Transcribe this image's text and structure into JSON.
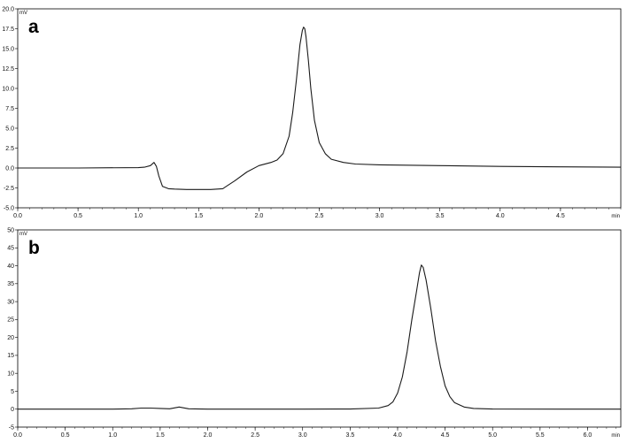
{
  "chart_data": [
    {
      "panel": "a",
      "type": "line",
      "xlabel": "min",
      "ylabel": "mV",
      "xlim": [
        0,
        5.0
      ],
      "ylim": [
        -5.0,
        20.0
      ],
      "xticks": [
        "0.0",
        "0.5",
        "1.0",
        "1.5",
        "2.0",
        "2.5",
        "3.0",
        "3.5",
        "4.0",
        "4.5"
      ],
      "yticks": [
        "-5.0",
        "-2.5",
        "0.0",
        "2.5",
        "5.0",
        "7.5",
        "10.0",
        "12.5",
        "15.0",
        "17.5",
        "20.0"
      ],
      "grid": false,
      "series": [
        {
          "x": [
            0.0,
            0.5,
            1.0,
            1.05,
            1.1,
            1.13,
            1.15,
            1.17,
            1.2,
            1.25,
            1.3,
            1.4,
            1.5,
            1.6,
            1.7,
            1.8,
            1.9,
            2.0,
            2.1,
            2.15,
            2.2,
            2.25,
            2.28,
            2.31,
            2.34,
            2.36,
            2.37,
            2.38,
            2.39,
            2.41,
            2.43,
            2.46,
            2.5,
            2.55,
            2.6,
            2.7,
            2.8,
            3.0,
            3.5,
            4.0,
            4.5,
            5.0
          ],
          "y": [
            0.0,
            0.0,
            0.05,
            0.1,
            0.3,
            0.7,
            0.2,
            -1.0,
            -2.3,
            -2.6,
            -2.65,
            -2.7,
            -2.7,
            -2.7,
            -2.6,
            -1.6,
            -0.5,
            0.3,
            0.7,
            1.0,
            1.8,
            4.0,
            7.0,
            11.0,
            15.5,
            17.3,
            17.7,
            17.5,
            16.5,
            13.5,
            10.0,
            6.0,
            3.2,
            1.8,
            1.1,
            0.7,
            0.5,
            0.4,
            0.3,
            0.2,
            0.15,
            0.1
          ]
        }
      ]
    },
    {
      "panel": "b",
      "type": "line",
      "xlabel": "min",
      "ylabel": "mV",
      "xlim": [
        0,
        6.35
      ],
      "ylim": [
        -5,
        50
      ],
      "xticks": [
        "0.0",
        "0.5",
        "1.0",
        "1.5",
        "2.0",
        "2.5",
        "3.0",
        "3.5",
        "4.0",
        "4.5",
        "5.0",
        "5.5",
        "6.0"
      ],
      "yticks": [
        "-5",
        "0",
        "5",
        "10",
        "15",
        "20",
        "25",
        "30",
        "35",
        "40",
        "45",
        "50"
      ],
      "grid": false,
      "series": [
        {
          "x": [
            0.0,
            0.5,
            1.0,
            1.2,
            1.3,
            1.4,
            1.5,
            1.6,
            1.7,
            1.8,
            2.0,
            3.0,
            3.5,
            3.8,
            3.9,
            3.95,
            4.0,
            4.05,
            4.1,
            4.15,
            4.2,
            4.23,
            4.25,
            4.27,
            4.3,
            4.35,
            4.4,
            4.45,
            4.5,
            4.55,
            4.6,
            4.7,
            4.8,
            5.0,
            6.0,
            6.35
          ],
          "y": [
            0.0,
            0.0,
            0.0,
            0.1,
            0.3,
            0.3,
            0.2,
            0.1,
            0.6,
            0.1,
            0.0,
            0.0,
            0.05,
            0.3,
            1.0,
            2.0,
            4.5,
            9.0,
            16.0,
            25.0,
            33.0,
            38.0,
            40.2,
            39.5,
            36.0,
            28.0,
            19.0,
            12.0,
            6.5,
            3.5,
            1.8,
            0.6,
            0.2,
            0.05,
            0.0,
            0.0
          ]
        }
      ]
    }
  ]
}
